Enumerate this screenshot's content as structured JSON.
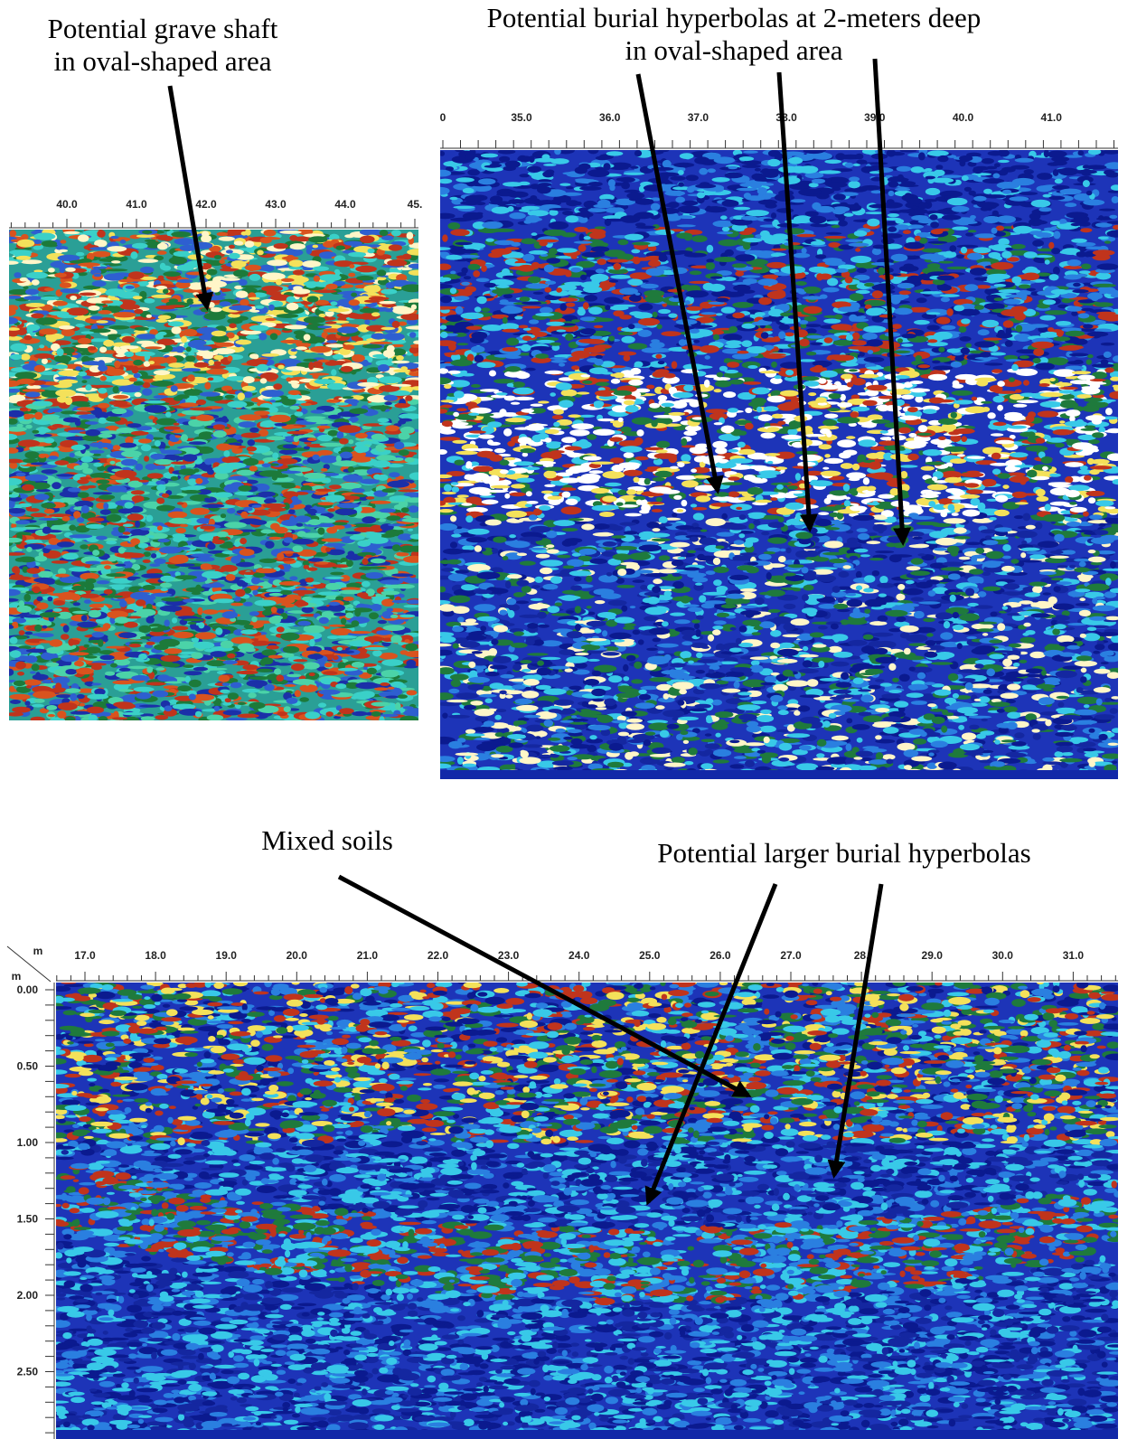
{
  "annotations": [
    {
      "lines": [
        "Potential grave shaft",
        "in oval-shaped area"
      ]
    },
    {
      "lines": [
        "Potential burial hyperbolas at 2-meters deep",
        "in oval-shaped area"
      ]
    },
    {
      "lines": [
        "Mixed soils"
      ]
    },
    {
      "lines": [
        "Potential larger burial hyperbolas"
      ]
    }
  ],
  "panels": [
    {
      "ticks": [
        "40.0",
        "41.0",
        "42.0",
        "43.0",
        "44.0",
        "45."
      ]
    },
    {
      "ticks": [
        "0",
        "35.0",
        "36.0",
        "37.0",
        "38.0",
        "39.0",
        "40.0",
        "41.0"
      ]
    },
    {
      "ticks": [
        "17.0",
        "18.0",
        "19.0",
        "20.0",
        "21.0",
        "22.0",
        "23.0",
        "24.0",
        "25.0",
        "26.0",
        "27.0",
        "28.",
        "29.0",
        "30.0",
        "31.0"
      ],
      "distance_unit": "m",
      "depth_unit": "m",
      "depth_ticks": [
        "0.00",
        "0.50",
        "1.00",
        "1.50",
        "2.00",
        "2.50"
      ]
    }
  ]
}
